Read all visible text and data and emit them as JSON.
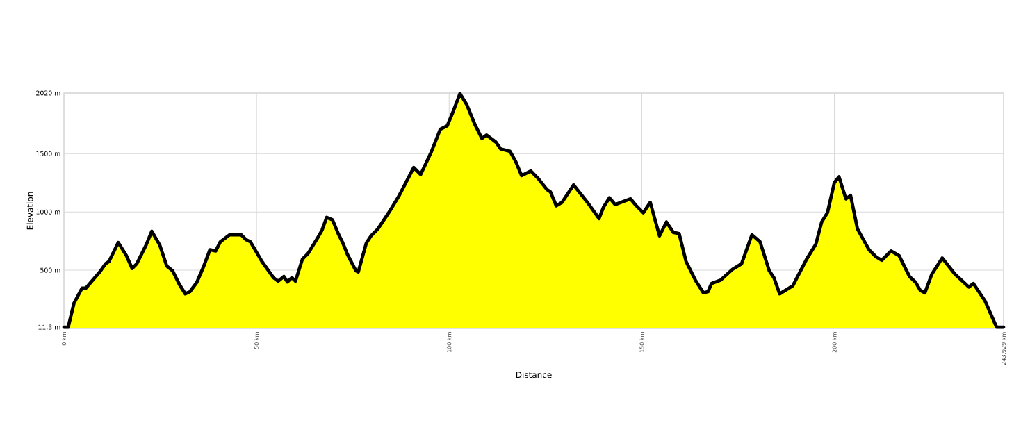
{
  "chart_data": {
    "type": "area",
    "xlabel": "Distance",
    "ylabel": "Elevation",
    "xlim": [
      0,
      243.929
    ],
    "ylim": [
      0,
      2020
    ],
    "xticks": [
      {
        "value": 0,
        "label": "0 km"
      },
      {
        "value": 50,
        "label": "50 km"
      },
      {
        "value": 100,
        "label": "100 km"
      },
      {
        "value": 150,
        "label": "150 km"
      },
      {
        "value": 200,
        "label": "200 km"
      },
      {
        "value": 243.929,
        "label": "243.929 km"
      }
    ],
    "yticks": [
      {
        "value": 11.3,
        "label": "11.3 m"
      },
      {
        "value": 500,
        "label": "500 m"
      },
      {
        "value": 1000,
        "label": "1000 m"
      },
      {
        "value": 1500,
        "label": "1500 m"
      },
      {
        "value": 2020,
        "label": "2020 m"
      }
    ],
    "grid": true,
    "series": [
      {
        "color": "#ffff00",
        "x": [
          0,
          1.1,
          2.6,
          4.7,
          5.7,
          7.5,
          9.3,
          10.8,
          11.7,
          14.1,
          16.2,
          17.7,
          18.9,
          21.3,
          22.8,
          24.9,
          26.7,
          28.2,
          30.0,
          31.5,
          32.7,
          34.5,
          36.3,
          37.9,
          39.4,
          40.6,
          43.0,
          46.0,
          47.2,
          48.4,
          51.4,
          54.4,
          55.6,
          57.1,
          58.0,
          59.2,
          60.1,
          61.9,
          63.4,
          65.8,
          67.0,
          68.2,
          69.7,
          71.2,
          72.4,
          73.6,
          75.8,
          76.4,
          78.5,
          79.7,
          81.5,
          84.5,
          86.9,
          90.8,
          92.6,
          95.3,
          97.7,
          99.5,
          101.0,
          102.8,
          104.6,
          106.7,
          108.5,
          109.7,
          112.1,
          113.4,
          115.8,
          117.3,
          118.8,
          121.2,
          123.0,
          125.4,
          126.3,
          127.8,
          129.3,
          132.3,
          135.9,
          138.9,
          140.1,
          141.6,
          143.1,
          147.1,
          148.3,
          150.4,
          152.2,
          154.6,
          156.4,
          158.2,
          159.7,
          161.5,
          163.9,
          166.0,
          167.2,
          168.1,
          170.5,
          173.5,
          175.9,
          178.6,
          180.7,
          183.1,
          184.3,
          185.8,
          189.2,
          192.8,
          195.2,
          196.7,
          198.2,
          200.0,
          201.2,
          203.0,
          204.2,
          206.0,
          209.0,
          210.8,
          212.3,
          214.7,
          216.8,
          219.5,
          221.1,
          222.3,
          223.5,
          225.3,
          228.0,
          231.3,
          234.9,
          236.1,
          239.1,
          242.1,
          243.929
        ],
        "values": [
          11.3,
          11.3,
          217,
          346,
          346,
          416,
          485,
          555,
          575,
          738,
          625,
          515,
          555,
          714,
          834,
          714,
          535,
          495,
          376,
          297,
          316,
          396,
          535,
          675,
          665,
          744,
          804,
          804,
          764,
          744,
          575,
          436,
          406,
          446,
          400,
          436,
          406,
          595,
          645,
          774,
          844,
          953,
          933,
          814,
          734,
          635,
          495,
          485,
          734,
          794,
          854,
          1003,
          1133,
          1381,
          1321,
          1510,
          1709,
          1739,
          1859,
          2015,
          1918,
          1749,
          1630,
          1660,
          1600,
          1540,
          1520,
          1431,
          1312,
          1351,
          1291,
          1192,
          1172,
          1053,
          1082,
          1232,
          1082,
          943,
          1043,
          1122,
          1063,
          1112,
          1063,
          993,
          1082,
          794,
          913,
          824,
          814,
          575,
          416,
          306,
          316,
          386,
          416,
          506,
          555,
          804,
          744,
          495,
          436,
          297,
          366,
          595,
          724,
          913,
          993,
          1252,
          1301,
          1112,
          1142,
          854,
          675,
          615,
          585,
          665,
          625,
          446,
          396,
          327,
          306,
          466,
          605,
          466,
          356,
          386,
          237,
          11.3,
          11.3
        ]
      }
    ]
  }
}
